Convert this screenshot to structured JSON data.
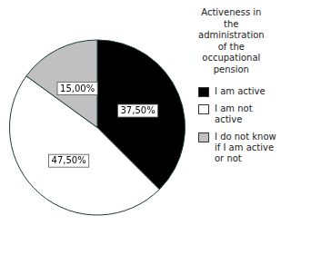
{
  "chart_data": {
    "type": "pie",
    "categories": [
      "I am active",
      "I am not\nactive",
      "I do not know\nif I am active\nor not"
    ],
    "values": [
      37.5,
      47.5,
      15.0
    ],
    "value_labels": [
      "37,50%",
      "47,50%",
      "15,00%"
    ],
    "colors": [
      "#000000",
      "#ffffff",
      "#c0c0c0"
    ],
    "legend_title": "Activeness in\nthe\nadministration\nof the\noccupational\npension",
    "legend": "right",
    "data_labels": true
  }
}
